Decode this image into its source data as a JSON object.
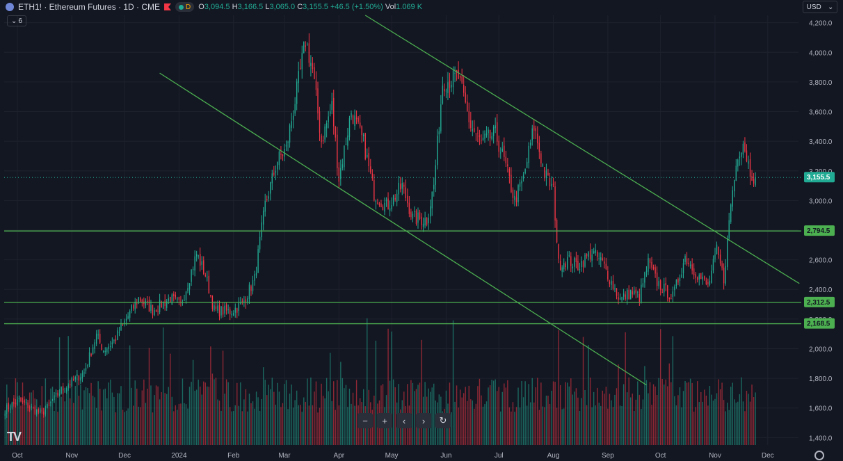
{
  "header": {
    "symbol": "ETH1! · Ethereum Futures · 1D · CME",
    "d_badge": "D",
    "ohlc": {
      "o_label": "O",
      "o": "3,094.5",
      "h_label": "H",
      "h": "3,166.5",
      "l_label": "L",
      "l": "3,065.0",
      "c_label": "C",
      "c": "3,155.5",
      "change": "+46.5 (+1.50%)",
      "vol_label": "Vol",
      "vol": "1.069 K"
    },
    "indicator_count": "6",
    "currency": "USD"
  },
  "colors": {
    "up": "#22ab94",
    "down": "#f23645",
    "line": "#4caf50",
    "bg": "#131722"
  },
  "chart_data": {
    "type": "candlestick",
    "title": "ETH1! · Ethereum Futures · 1D · CME",
    "ylim": [
      1350,
      4250
    ],
    "y_ticks": [
      1400,
      1600,
      1800,
      2000,
      2200,
      2400,
      2600,
      2800,
      3000,
      3200,
      3400,
      3600,
      3800,
      4000,
      4200
    ],
    "y_tick_labels": [
      "1,400.0",
      "1,600.0",
      "1,800.0",
      "2,000.0",
      "2,200.0",
      "2,400.0",
      "2,600.0",
      "2,800.0",
      "3,000.0",
      "3,200.0",
      "3,400.0",
      "3,600.0",
      "3,800.0",
      "4,000.0",
      "4,200.0"
    ],
    "x_labels": [
      "Oct",
      "Nov",
      "Dec",
      "2024",
      "Feb",
      "Mar",
      "Apr",
      "May",
      "Jun",
      "Jul",
      "Aug",
      "Sep",
      "Oct",
      "Nov",
      "Dec"
    ],
    "x_label_index": [
      7,
      38,
      68,
      99,
      130,
      159,
      190,
      220,
      251,
      281,
      312,
      343,
      373,
      404,
      434
    ],
    "total_days": 452,
    "last_price": 3155.5,
    "last_price_label": "3,155.5",
    "horizontal_levels": [
      {
        "price": 2794.5,
        "label": "2,794.5"
      },
      {
        "price": 2312.5,
        "label": "2,312.5"
      },
      {
        "price": 2168.5,
        "label": "2,168.5"
      }
    ],
    "trendlines": [
      {
        "from_day": 88,
        "from_price": 3860,
        "to_day": 365,
        "to_price": 1755
      },
      {
        "from_day": 205,
        "from_price": 4250,
        "to_day": 452,
        "to_price": 2440
      }
    ],
    "anchors": [
      [
        0,
        1590
      ],
      [
        8,
        1650
      ],
      [
        15,
        1600
      ],
      [
        21,
        1560
      ],
      [
        32,
        1720
      ],
      [
        45,
        1840
      ],
      [
        52,
        2090
      ],
      [
        56,
        1990
      ],
      [
        62,
        2050
      ],
      [
        68,
        2180
      ],
      [
        76,
        2340
      ],
      [
        84,
        2260
      ],
      [
        94,
        2340
      ],
      [
        100,
        2290
      ],
      [
        109,
        2640
      ],
      [
        114,
        2500
      ],
      [
        119,
        2260
      ],
      [
        128,
        2250
      ],
      [
        135,
        2300
      ],
      [
        142,
        2470
      ],
      [
        148,
        2970
      ],
      [
        155,
        3270
      ],
      [
        160,
        3350
      ],
      [
        166,
        3740
      ],
      [
        171,
        4080
      ],
      [
        175,
        3880
      ],
      [
        180,
        3400
      ],
      [
        186,
        3640
      ],
      [
        190,
        3150
      ],
      [
        197,
        3600
      ],
      [
        204,
        3390
      ],
      [
        210,
        3050
      ],
      [
        217,
        2960
      ],
      [
        220,
        3000
      ],
      [
        226,
        3100
      ],
      [
        232,
        2880
      ],
      [
        240,
        2870
      ],
      [
        244,
        3100
      ],
      [
        249,
        3800
      ],
      [
        258,
        3830
      ],
      [
        265,
        3500
      ],
      [
        271,
        3390
      ],
      [
        279,
        3450
      ],
      [
        284,
        3270
      ],
      [
        290,
        3000
      ],
      [
        295,
        3150
      ],
      [
        301,
        3500
      ],
      [
        307,
        3180
      ],
      [
        312,
        3070
      ],
      [
        315,
        2570
      ],
      [
        320,
        2600
      ],
      [
        326,
        2560
      ],
      [
        334,
        2650
      ],
      [
        340,
        2580
      ],
      [
        345,
        2450
      ],
      [
        350,
        2330
      ],
      [
        356,
        2380
      ],
      [
        361,
        2350
      ],
      [
        366,
        2580
      ],
      [
        371,
        2450
      ],
      [
        375,
        2400
      ],
      [
        380,
        2350
      ],
      [
        387,
        2620
      ],
      [
        394,
        2500
      ],
      [
        400,
        2420
      ],
      [
        405,
        2660
      ],
      [
        409,
        2470
      ],
      [
        413,
        2980
      ],
      [
        417,
        3320
      ],
      [
        420,
        3400
      ],
      [
        424,
        3200
      ],
      [
        427,
        3155.5
      ]
    ],
    "volume_ylim": [
      0,
      1200
    ]
  },
  "controls": {
    "zoom_out": "−",
    "zoom_in": "+",
    "scroll_left": "‹",
    "scroll_right": "›",
    "reset": "↻"
  },
  "logo": "TV"
}
